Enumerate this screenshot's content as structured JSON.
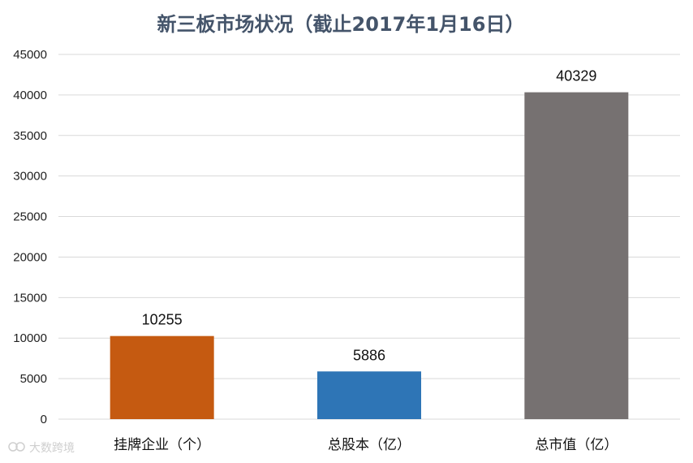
{
  "chart_data": {
    "type": "bar",
    "title": "新三板市场状况（截止2017年1月16日）",
    "categories": [
      "挂牌企业（个）",
      "总股本（亿）",
      "总市值（亿）"
    ],
    "values": [
      10255,
      5886,
      40329
    ],
    "data_labels": [
      "10255",
      "5886",
      "40329"
    ],
    "bar_colors": [
      "#c55a11",
      "#2e75b6",
      "#767171"
    ],
    "ylim": [
      0,
      45000
    ],
    "yticks": [
      0,
      5000,
      10000,
      15000,
      20000,
      25000,
      30000,
      35000,
      40000,
      45000
    ],
    "ytick_labels": [
      "0",
      "5000",
      "10000",
      "15000",
      "20000",
      "25000",
      "30000",
      "35000",
      "40000",
      "45000"
    ],
    "grid": true,
    "legend": "none"
  },
  "watermark": {
    "text": "大数跨境",
    "icon": "link-logo-icon"
  },
  "colors": {
    "title": "#44546a",
    "grid": "#d9d9d9"
  }
}
